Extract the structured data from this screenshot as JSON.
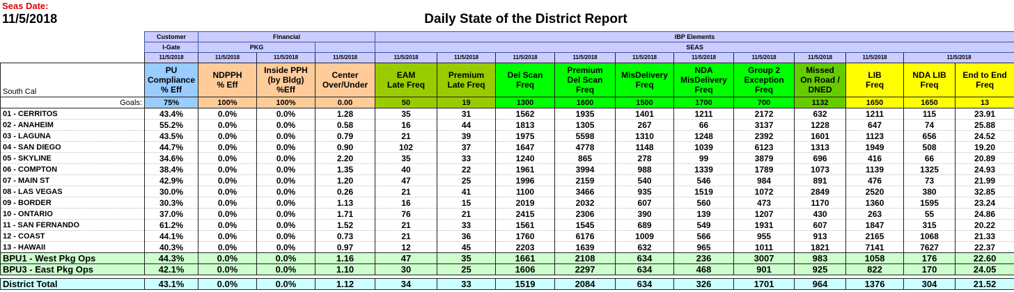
{
  "header": {
    "seas_label": "Seas Date:",
    "date": "11/5/2018",
    "title": "Daily State of the District Report"
  },
  "table": {
    "groups": [
      "Customer",
      "Financial",
      "IBP Elements"
    ],
    "subgroups": [
      "I-Gate",
      "PKG",
      "SEAS"
    ],
    "dates": [
      "11/5/2018",
      "11/5/2018",
      "11/5/2018",
      "11/5/2018",
      "11/5/2018",
      "11/5/2018",
      "11/5/2018",
      "11/5/2018",
      "11/5/2018",
      "11/5/2018",
      "11/5/2018",
      "11/5/2018",
      "11/5/2018",
      "11/5/2018"
    ],
    "corner": "South Cal",
    "columns": [
      "PU\nCompliance\n% Eff",
      "NDPPH\n% Eff",
      "Inside PPH\n(by Bldg)\n%Eff",
      "Center\nOver/Under",
      "EAM\nLate Freq",
      "Premium\nLate Freq",
      "Del Scan\nFreq",
      "Premium\nDel Scan\nFreq",
      "MisDelivery\nFreq",
      "NDA\nMisDelivery\nFreq",
      "Group 2\nException\nFreq",
      "Missed\nOn Road /\nDNED",
      "LIB\nFreq",
      "NDA LIB\nFreq",
      "End to End\nFreq"
    ],
    "goals_label": "Goals:",
    "goals": [
      "75%",
      "100%",
      "100%",
      "0.00",
      "50",
      "19",
      "1300",
      "1600",
      "1500",
      "1700",
      "700",
      "1132",
      "1650",
      "1650",
      "13"
    ],
    "rows": [
      {
        "name": "01 - CERRITOS",
        "values": [
          "43.4%",
          "0.0%",
          "0.0%",
          "1.28",
          "35",
          "31",
          "1562",
          "1935",
          "1401",
          "1211",
          "2172",
          "632",
          "1211",
          "115",
          "23.91"
        ]
      },
      {
        "name": "02 - ANAHEIM",
        "values": [
          "55.2%",
          "0.0%",
          "0.0%",
          "0.58",
          "16",
          "44",
          "1813",
          "1305",
          "267",
          "66",
          "3137",
          "1228",
          "647",
          "74",
          "25.88"
        ]
      },
      {
        "name": "03 - LAGUNA",
        "values": [
          "43.5%",
          "0.0%",
          "0.0%",
          "0.79",
          "21",
          "39",
          "1975",
          "5598",
          "1310",
          "1248",
          "2392",
          "1601",
          "1123",
          "656",
          "24.52"
        ]
      },
      {
        "name": "04 - SAN DIEGO",
        "values": [
          "44.7%",
          "0.0%",
          "0.0%",
          "0.90",
          "102",
          "37",
          "1647",
          "4778",
          "1148",
          "1039",
          "6123",
          "1313",
          "1949",
          "508",
          "19.20"
        ]
      },
      {
        "name": "05 - SKYLINE",
        "values": [
          "34.6%",
          "0.0%",
          "0.0%",
          "2.20",
          "35",
          "33",
          "1240",
          "865",
          "278",
          "99",
          "3879",
          "696",
          "416",
          "66",
          "20.89"
        ]
      },
      {
        "name": "06 - COMPTON",
        "values": [
          "38.4%",
          "0.0%",
          "0.0%",
          "1.35",
          "40",
          "22",
          "1961",
          "3994",
          "988",
          "1339",
          "1789",
          "1073",
          "1139",
          "1325",
          "24.93"
        ]
      },
      {
        "name": "07 - MAIN ST",
        "values": [
          "42.9%",
          "0.0%",
          "0.0%",
          "1.20",
          "47",
          "25",
          "1996",
          "2159",
          "540",
          "546",
          "984",
          "891",
          "476",
          "73",
          "21.99"
        ]
      },
      {
        "name": "08 - LAS VEGAS",
        "values": [
          "30.0%",
          "0.0%",
          "0.0%",
          "0.26",
          "21",
          "41",
          "1100",
          "3466",
          "935",
          "1519",
          "1072",
          "2849",
          "2520",
          "380",
          "32.85"
        ]
      },
      {
        "name": "09 - BORDER",
        "values": [
          "30.3%",
          "0.0%",
          "0.0%",
          "1.13",
          "16",
          "15",
          "2019",
          "2032",
          "607",
          "560",
          "473",
          "1170",
          "1360",
          "1595",
          "23.24"
        ]
      },
      {
        "name": "10 - ONTARIO",
        "values": [
          "37.0%",
          "0.0%",
          "0.0%",
          "1.71",
          "76",
          "21",
          "2415",
          "2306",
          "390",
          "139",
          "1207",
          "430",
          "263",
          "55",
          "24.86"
        ]
      },
      {
        "name": "11 - SAN FERNANDO",
        "values": [
          "61.2%",
          "0.0%",
          "0.0%",
          "1.52",
          "21",
          "33",
          "1561",
          "1545",
          "689",
          "549",
          "1931",
          "607",
          "1847",
          "315",
          "20.22"
        ]
      },
      {
        "name": "12 - COAST",
        "values": [
          "44.1%",
          "0.0%",
          "0.0%",
          "0.73",
          "21",
          "36",
          "1760",
          "6176",
          "1009",
          "566",
          "955",
          "913",
          "2165",
          "1068",
          "21.33"
        ]
      },
      {
        "name": "13 - HAWAII",
        "values": [
          "40.3%",
          "0.0%",
          "0.0%",
          "0.97",
          "12",
          "45",
          "2203",
          "1639",
          "632",
          "965",
          "1011",
          "1821",
          "7141",
          "7627",
          "22.37"
        ]
      }
    ],
    "subtotals": [
      {
        "name": "BPU1 - West Pkg Ops",
        "values": [
          "44.3%",
          "0.0%",
          "0.0%",
          "1.16",
          "47",
          "35",
          "1661",
          "2108",
          "634",
          "236",
          "3007",
          "983",
          "1058",
          "176",
          "22.60"
        ]
      },
      {
        "name": "BPU3 - East Pkg Ops",
        "values": [
          "42.1%",
          "0.0%",
          "0.0%",
          "1.10",
          "30",
          "25",
          "1606",
          "2297",
          "634",
          "468",
          "901",
          "925",
          "822",
          "170",
          "24.05"
        ]
      }
    ],
    "total": {
      "name": "District Total",
      "values": [
        "43.1%",
        "0.0%",
        "0.0%",
        "1.12",
        "34",
        "33",
        "1519",
        "2084",
        "634",
        "326",
        "1701",
        "964",
        "1376",
        "304",
        "21.52"
      ]
    }
  }
}
